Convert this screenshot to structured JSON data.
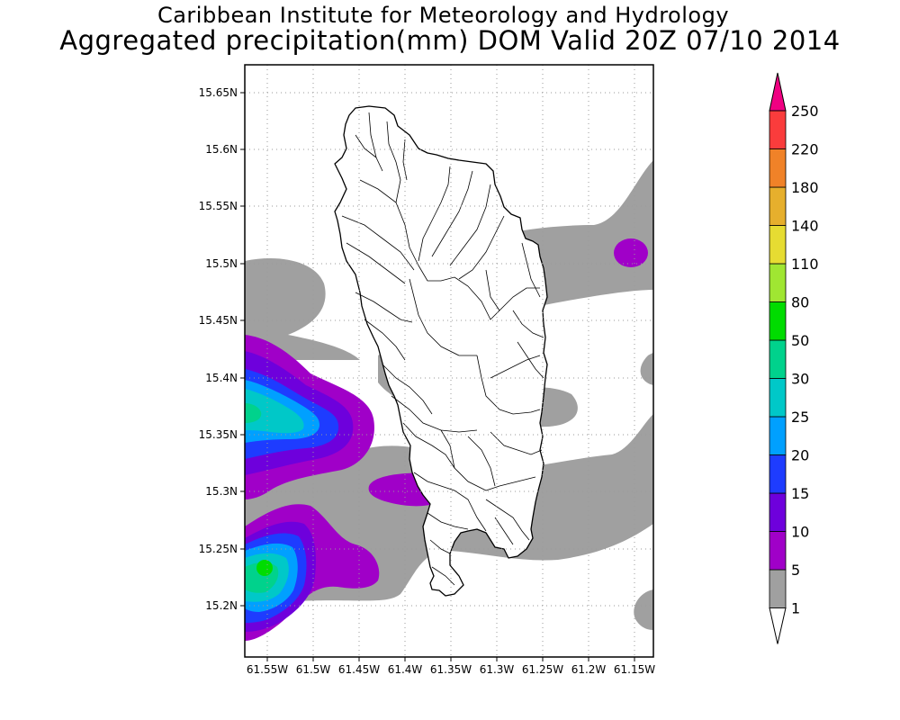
{
  "header": {
    "line1": "Caribbean Institute for Meteorology and Hydrology",
    "line2": "Aggregated precipitation(mm) DOM Valid 20Z 07/10 2014"
  },
  "map": {
    "lat_ticks": [
      "15.65N",
      "15.6N",
      "15.55N",
      "15.5N",
      "15.45N",
      "15.4N",
      "15.35N",
      "15.3N",
      "15.25N",
      "15.2N"
    ],
    "lon_ticks": [
      "61.55W",
      "61.5W",
      "61.45W",
      "61.4W",
      "61.35W",
      "61.3W",
      "61.25W",
      "61.2W",
      "61.15W"
    ],
    "gridlines": true
  },
  "legend": {
    "levels": [
      "1",
      "5",
      "10",
      "15",
      "20",
      "25",
      "30",
      "50",
      "80",
      "110",
      "140",
      "180",
      "220",
      "250"
    ],
    "colors": [
      "#a0a0a0",
      "#a000c8",
      "#6e00dc",
      "#1e3cff",
      "#00a0ff",
      "#00c8c8",
      "#00d28c",
      "#00dc00",
      "#a0e632",
      "#e6dc32",
      "#e6af2d",
      "#f08228",
      "#fa3c3c",
      "#f00082"
    ]
  }
}
